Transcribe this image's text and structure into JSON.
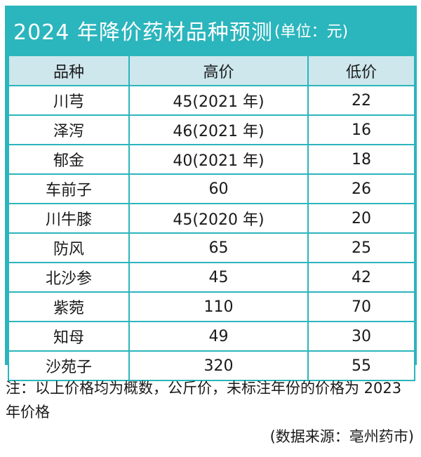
{
  "title": "2024 年降价药材品种预测",
  "title_unit": "(单位：元)",
  "headers": {
    "name": "品种",
    "high": "高价",
    "low": "低价"
  },
  "rows": [
    {
      "name": "川芎",
      "high": "45(2021 年)",
      "low": "22"
    },
    {
      "name": "泽泻",
      "high": "46(2021 年)",
      "low": "16"
    },
    {
      "name": "郁金",
      "high": "40(2021 年)",
      "low": "18"
    },
    {
      "name": "车前子",
      "high": "60",
      "low": "26"
    },
    {
      "name": "川牛膝",
      "high": "45(2020 年)",
      "low": "20"
    },
    {
      "name": "防风",
      "high": "65",
      "low": "25"
    },
    {
      "name": "北沙参",
      "high": "45",
      "low": "42"
    },
    {
      "name": "紫菀",
      "high": "110",
      "low": "70"
    },
    {
      "name": "知母",
      "high": "49",
      "low": "30"
    },
    {
      "name": "沙苑子",
      "high": "320",
      "low": "55"
    }
  ],
  "note": "注：以上价格均为概数，公斤价，未标注年份的价格为 2023 年价格",
  "source": "(数据来源：亳州药市)",
  "colors": {
    "frame": "#2bb5bd",
    "header_bg": "#cde7ec",
    "title_text": "#ffffff"
  }
}
